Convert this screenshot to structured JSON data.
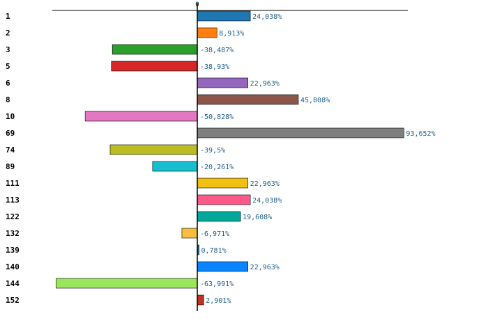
{
  "chart_data": {
    "type": "bar",
    "orientation": "horizontal",
    "title": "",
    "xlabel": "",
    "ylabel": "",
    "xlim": [
      -70,
      102
    ],
    "zero_tick": "0",
    "grid": false,
    "legend": "none",
    "categories": [
      "1",
      "2",
      "3",
      "5",
      "6",
      "8",
      "10",
      "69",
      "74",
      "89",
      "111",
      "113",
      "122",
      "132",
      "139",
      "140",
      "144",
      "152"
    ],
    "values": [
      24.038,
      8.913,
      -38.487,
      -38.93,
      22.963,
      45.808,
      -50.828,
      93.652,
      -39.5,
      -20.261,
      22.963,
      24.038,
      19.608,
      -6.971,
      0.781,
      22.963,
      -63.991,
      2.901
    ],
    "value_labels": [
      "24,038%",
      "8,913%",
      "-38,487%",
      "-38,93%",
      "22,963%",
      "45,808%",
      "-50,828%",
      "93,652%",
      "-39,5%",
      "-20,261%",
      "22,963%",
      "24,038%",
      "19,608%",
      "-6,971%",
      "0,781%",
      "22,963%",
      "-63,991%",
      "2,901%"
    ],
    "colors": [
      "#1f77b4",
      "#ff7f0e",
      "#2ca02c",
      "#d62728",
      "#9467bd",
      "#8c564b",
      "#e377c2",
      "#7f7f7f",
      "#bcbd22",
      "#17becf",
      "#f2c010",
      "#ff5a8a",
      "#00a89c",
      "#f7bf3d",
      "#1f5f8b",
      "#0a84ff",
      "#99e65a",
      "#c0301e"
    ]
  }
}
